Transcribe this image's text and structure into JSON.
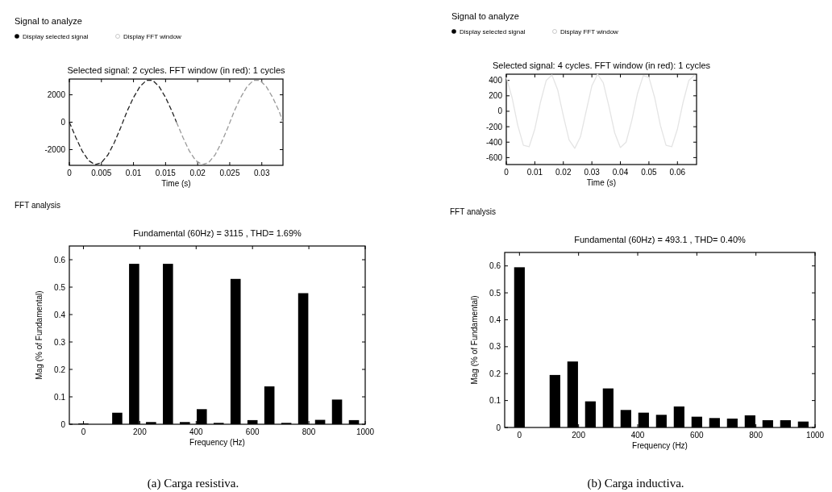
{
  "chart_data": [
    {
      "type": "line",
      "title": "Selected signal: 2 cycles. FFT window (in red): 1 cycles",
      "xlabel": "Time (s)",
      "annotations": [
        "Signal to analyze",
        "Display selected signal",
        "Display FFT window"
      ],
      "line_style": "dashed",
      "xlim": [
        0,
        0.0333
      ],
      "xticks": [
        0,
        0.005,
        0.01,
        0.015,
        0.02,
        0.025,
        0.03
      ],
      "ylim": [
        -3150,
        3150
      ],
      "yticks": [
        -2000,
        0,
        2000
      ],
      "series": [
        {
          "color": "#222222",
          "x": [
            0,
            0.001,
            0.002,
            0.003,
            0.004,
            0.005,
            0.006,
            0.007,
            0.008,
            0.009,
            0.01,
            0.011,
            0.012,
            0.013,
            0.014,
            0.015,
            0.016,
            0.0167
          ],
          "values": [
            0,
            -1100,
            -2100,
            -2800,
            -3100,
            -2950,
            -2400,
            -1500,
            -400,
            800,
            1800,
            2600,
            3050,
            3050,
            2600,
            1800,
            800,
            0
          ]
        },
        {
          "color": "#9a9a9a",
          "x": [
            0.0167,
            0.0177,
            0.0187,
            0.0197,
            0.0207,
            0.0217,
            0.0227,
            0.0237,
            0.0247,
            0.0257,
            0.0267,
            0.0277,
            0.0287,
            0.0297,
            0.0307,
            0.0317,
            0.0327,
            0.0333
          ],
          "values": [
            0,
            -1100,
            -2100,
            -2800,
            -3100,
            -2950,
            -2400,
            -1500,
            -400,
            800,
            1800,
            2600,
            3050,
            3050,
            2600,
            1800,
            800,
            0
          ]
        }
      ]
    },
    {
      "type": "line",
      "title": "Selected signal: 4 cycles. FFT window (in red): 1 cycles",
      "xlabel": "Time (s)",
      "annotations": [
        "Signal to analyze",
        "Display selected signal",
        "Display FFT window"
      ],
      "xlim": [
        0,
        0.0667
      ],
      "xticks": [
        0,
        0.01,
        0.02,
        0.03,
        0.04,
        0.05,
        0.06
      ],
      "ylim": [
        -690,
        480
      ],
      "yticks": [
        -600,
        -400,
        -200,
        0,
        200,
        400
      ],
      "series": [
        {
          "color": "#e4e4e4",
          "x": [
            0,
            0.002,
            0.004,
            0.006,
            0.008,
            0.01,
            0.012,
            0.014,
            0.016,
            0.018,
            0.02,
            0.022,
            0.024,
            0.026,
            0.028,
            0.03,
            0.032,
            0.034,
            0.036,
            0.038,
            0.04,
            0.042,
            0.044,
            0.046,
            0.048,
            0.05,
            0.052,
            0.054,
            0.056,
            0.058,
            0.06,
            0.062,
            0.064,
            0.066
          ],
          "values": [
            440,
            180,
            -180,
            -440,
            -460,
            -230,
            120,
            400,
            470,
            280,
            -60,
            -370,
            -480,
            -330,
            0,
            330,
            480,
            370,
            60,
            -280,
            -470,
            -400,
            -120,
            230,
            460,
            440,
            180,
            -180,
            -440,
            -460,
            -230,
            120,
            400,
            470
          ]
        }
      ]
    },
    {
      "type": "bar",
      "title": "Fundamental (60Hz) = 3115 , THD= 1.69%",
      "xlabel": "Frequency (Hz)",
      "ylabel": "Mag (% of Fundamental)",
      "annotations": [
        "FFT analysis",
        "(a) Carga resistiva."
      ],
      "color": "#000000",
      "xlim": [
        -50,
        1000
      ],
      "xticks": [
        0,
        200,
        400,
        600,
        800,
        1000
      ],
      "ylim": [
        0,
        0.65
      ],
      "yticks": [
        0,
        0.1,
        0.2,
        0.3,
        0.4,
        0.5,
        0.6
      ],
      "x": [
        0,
        60,
        120,
        180,
        240,
        300,
        360,
        420,
        480,
        540,
        600,
        660,
        720,
        780,
        840,
        900,
        960
      ],
      "values": [
        0.003,
        null,
        0.042,
        0.585,
        0.008,
        0.585,
        0.008,
        0.055,
        0.005,
        0.53,
        0.015,
        0.138,
        0.005,
        0.478,
        0.016,
        0.09,
        0.015
      ]
    },
    {
      "type": "bar",
      "title": "Fundamental (60Hz) = 493.1 , THD= 0.40%",
      "xlabel": "Frequency (Hz)",
      "ylabel": "Mag (% of Fundamental)",
      "annotations": [
        "FFT analysis",
        "(b) Carga inductiva."
      ],
      "color": "#000000",
      "xlim": [
        -50,
        1000
      ],
      "xticks": [
        0,
        200,
        400,
        600,
        800,
        1000
      ],
      "ylim": [
        0,
        0.65
      ],
      "yticks": [
        0,
        0.1,
        0.2,
        0.3,
        0.4,
        0.5,
        0.6
      ],
      "x": [
        0,
        60,
        120,
        180,
        240,
        300,
        360,
        420,
        480,
        540,
        600,
        660,
        720,
        780,
        840,
        900,
        960
      ],
      "values": [
        0.595,
        null,
        0.195,
        0.245,
        0.097,
        0.145,
        0.065,
        0.055,
        0.047,
        0.078,
        0.04,
        0.035,
        0.033,
        0.045,
        0.027,
        0.027,
        0.022
      ]
    }
  ]
}
